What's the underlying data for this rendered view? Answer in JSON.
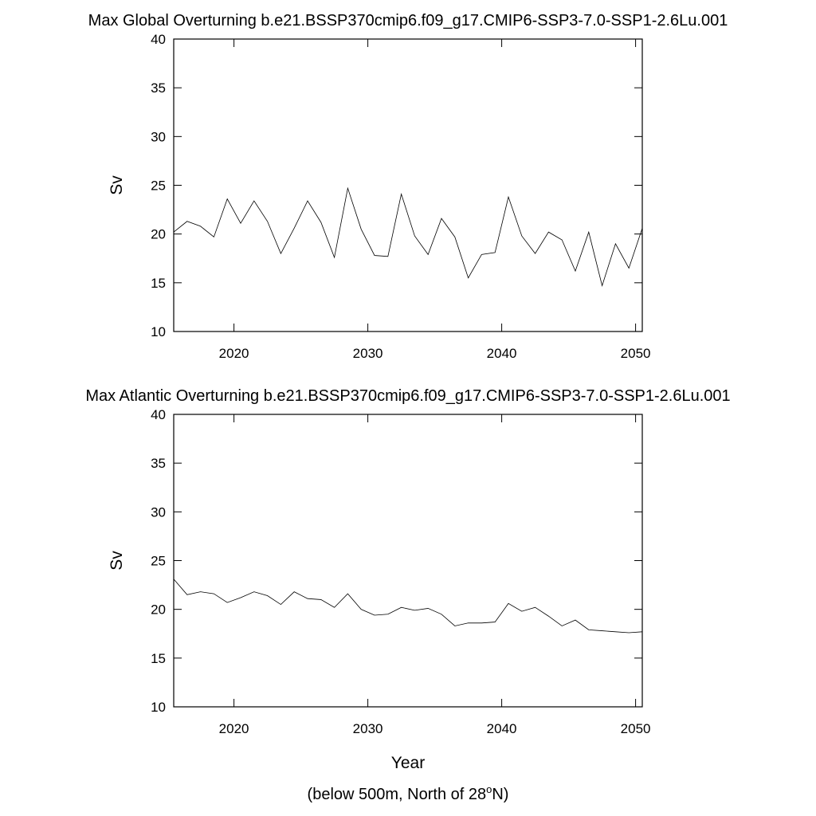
{
  "chart_data": [
    {
      "type": "line",
      "title": "Max Global Overturning b.e21.BSSP370cmip6.f09_g17.CMIP6-SSP3-7.0-SSP1-2.6Lu.001",
      "ylabel": "Sv",
      "x": [
        2015.5,
        2016.5,
        2017.5,
        2018.5,
        2019.5,
        2020.5,
        2021.5,
        2022.5,
        2023.5,
        2024.5,
        2025.5,
        2026.5,
        2027.5,
        2028.5,
        2029.5,
        2030.5,
        2031.5,
        2032.5,
        2033.5,
        2034.5,
        2035.5,
        2036.5,
        2037.5,
        2038.5,
        2039.5,
        2040.5,
        2041.5,
        2042.5,
        2043.5,
        2044.5,
        2045.5,
        2046.5,
        2047.5,
        2048.5,
        2049.5,
        2050.5
      ],
      "series": [
        {
          "color": "#000000",
          "values": [
            20.2,
            21.3,
            20.8,
            19.7,
            23.6,
            21.1,
            23.4,
            21.3,
            18.0,
            20.6,
            23.4,
            21.2,
            17.6,
            24.7,
            20.5,
            17.8,
            17.7,
            24.1,
            19.8,
            17.9,
            21.6,
            19.7,
            15.5,
            17.9,
            18.1,
            23.8,
            19.8,
            18.0,
            20.2,
            19.4,
            16.2,
            20.2,
            14.7,
            19.0,
            16.5,
            20.6
          ]
        }
      ],
      "xlim": [
        2015.5,
        2050.5
      ],
      "xticks": [
        2020,
        2030,
        2040,
        2050
      ],
      "ylim": [
        10,
        40
      ],
      "yticks": [
        10,
        15,
        20,
        25,
        30,
        35,
        40
      ]
    },
    {
      "type": "line",
      "title": "Max Atlantic Overturning b.e21.BSSP370cmip6.f09_g17.CMIP6-SSP3-7.0-SSP1-2.6Lu.001",
      "ylabel": "Sv",
      "xlabel": "Year",
      "note": [
        "(below 500m, North of 28",
        "o",
        "N)"
      ],
      "x": [
        2015.5,
        2016.5,
        2017.5,
        2018.5,
        2019.5,
        2020.5,
        2021.5,
        2022.5,
        2023.5,
        2024.5,
        2025.5,
        2026.5,
        2027.5,
        2028.5,
        2029.5,
        2030.5,
        2031.5,
        2032.5,
        2033.5,
        2034.5,
        2035.5,
        2036.5,
        2037.5,
        2038.5,
        2039.5,
        2040.5,
        2041.5,
        2042.5,
        2043.5,
        2044.5,
        2045.5,
        2046.5,
        2047.5,
        2048.5,
        2049.5,
        2050.5
      ],
      "series": [
        {
          "color": "#000000",
          "values": [
            23.1,
            21.5,
            21.8,
            21.6,
            20.7,
            21.2,
            21.8,
            21.4,
            20.5,
            21.8,
            21.1,
            21.0,
            20.2,
            21.6,
            20.0,
            19.4,
            19.5,
            20.2,
            19.9,
            20.1,
            19.5,
            18.3,
            18.6,
            18.6,
            18.7,
            20.6,
            19.8,
            20.2,
            19.3,
            18.3,
            18.9,
            17.9,
            17.8,
            17.7,
            17.6,
            17.7
          ]
        }
      ],
      "xlim": [
        2015.5,
        2050.5
      ],
      "xticks": [
        2020,
        2030,
        2040,
        2050
      ],
      "ylim": [
        10,
        40
      ],
      "yticks": [
        10,
        15,
        20,
        25,
        30,
        35,
        40
      ]
    }
  ]
}
